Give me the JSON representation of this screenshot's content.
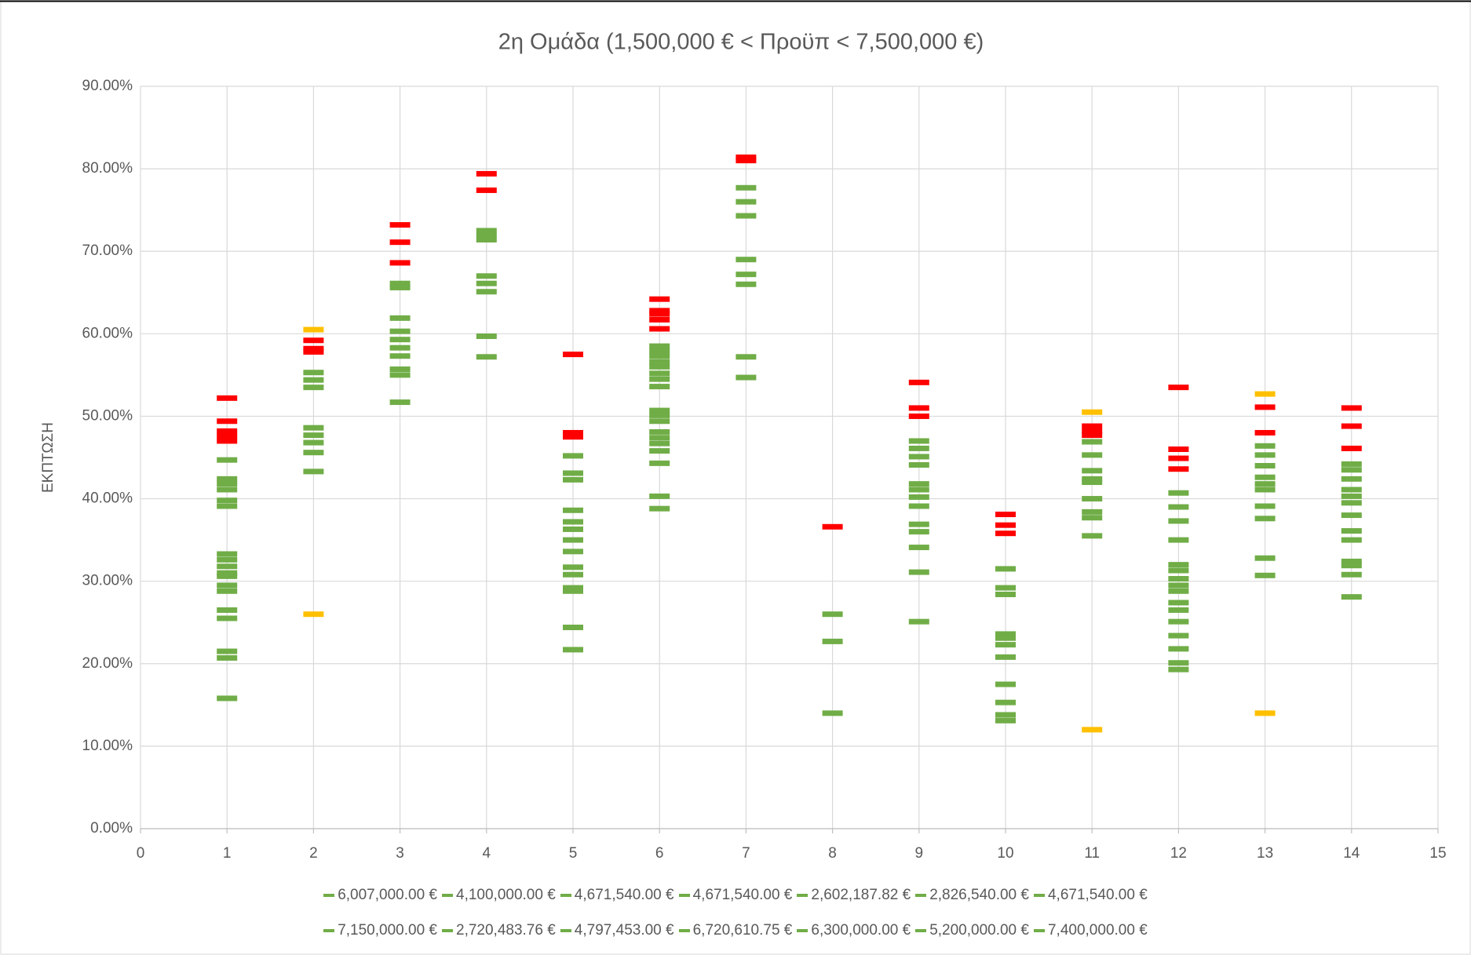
{
  "chart_data": {
    "type": "scatter",
    "title": "2η Ομάδα (1,500,000 € < Προϋπ < 7,500,000 €)",
    "y_label": "ΕΚΠΤΩΣΗ",
    "xlim": [
      0,
      15
    ],
    "xticks": [
      0,
      1,
      2,
      3,
      4,
      5,
      6,
      7,
      8,
      9,
      10,
      11,
      12,
      13,
      14,
      15
    ],
    "ylim": [
      0,
      90
    ],
    "yticks": [
      {
        "value": 0,
        "label": "0.00%"
      },
      {
        "value": 10,
        "label": "10.00%"
      },
      {
        "value": 20,
        "label": "20.00%"
      },
      {
        "value": 30,
        "label": "30.00%"
      },
      {
        "value": 40,
        "label": "40.00%"
      },
      {
        "value": 50,
        "label": "50.00%"
      },
      {
        "value": 60,
        "label": "60.00%"
      },
      {
        "value": 70,
        "label": "70.00%"
      },
      {
        "value": 80,
        "label": "80.00%"
      },
      {
        "value": 90,
        "label": "90.00%"
      }
    ],
    "grid": true,
    "legend": "bottom",
    "series": [
      {
        "name": "6,007,000.00 €",
        "color": "#70ad47",
        "x": 1,
        "values": [
          52.2,
          49.4,
          48.2,
          47.6,
          47.0,
          44.7,
          42.4,
          41.8,
          41.1,
          39.8,
          39.1,
          33.3,
          32.6,
          31.8,
          31.0,
          30.6,
          29.5,
          28.8,
          26.5,
          25.5,
          21.5,
          20.7,
          15.8
        ],
        "point_colors": [
          "#ff0000",
          "#ff0000",
          "#ff0000",
          "#ff0000",
          "#ff0000",
          "#70ad47",
          "#70ad47",
          "#70ad47",
          "#70ad47",
          "#70ad47",
          "#70ad47",
          "#70ad47",
          "#70ad47",
          "#70ad47",
          "#70ad47",
          "#70ad47",
          "#70ad47",
          "#70ad47",
          "#70ad47",
          "#70ad47",
          "#70ad47",
          "#70ad47",
          "#70ad47"
        ]
      },
      {
        "name": "4,100,000.00 €",
        "color": "#70ad47",
        "x": 2,
        "values": [
          60.5,
          59.2,
          58.2,
          57.8,
          55.3,
          54.4,
          53.5,
          48.6,
          47.7,
          46.8,
          45.6,
          43.3,
          26.0
        ],
        "point_colors": [
          "#ffc000",
          "#ff0000",
          "#ff0000",
          "#ff0000",
          "#70ad47",
          "#70ad47",
          "#70ad47",
          "#70ad47",
          "#70ad47",
          "#70ad47",
          "#70ad47",
          "#70ad47",
          "#ffc000"
        ]
      },
      {
        "name": "4,671,540.00 €",
        "color": "#70ad47",
        "x": 3,
        "values": [
          73.2,
          71.1,
          68.6,
          66.1,
          65.6,
          61.9,
          60.3,
          59.3,
          58.3,
          57.3,
          55.7,
          55.0,
          51.7
        ],
        "point_colors": [
          "#ff0000",
          "#ff0000",
          "#ff0000",
          "#70ad47",
          "#70ad47",
          "#70ad47",
          "#70ad47",
          "#70ad47",
          "#70ad47",
          "#70ad47",
          "#70ad47",
          "#70ad47",
          "#70ad47"
        ]
      },
      {
        "name": "4,671,540.00 €",
        "color": "#70ad47",
        "x": 4,
        "values": [
          79.4,
          77.4,
          72.5,
          71.9,
          71.4,
          67.0,
          66.1,
          65.1,
          59.7,
          57.2
        ],
        "point_colors": [
          "#ff0000",
          "#ff0000",
          "#70ad47",
          "#70ad47",
          "#70ad47",
          "#70ad47",
          "#70ad47",
          "#70ad47",
          "#70ad47",
          "#70ad47"
        ]
      },
      {
        "name": "2,602,187.82 €",
        "color": "#70ad47",
        "x": 5,
        "values": [
          57.5,
          48.0,
          47.5,
          45.2,
          43.1,
          42.3,
          38.6,
          37.2,
          36.3,
          35.0,
          33.6,
          31.7,
          30.8,
          29.2,
          28.8,
          24.4,
          21.7
        ],
        "point_colors": [
          "#ff0000",
          "#ff0000",
          "#ff0000",
          "#70ad47",
          "#70ad47",
          "#70ad47",
          "#70ad47",
          "#70ad47",
          "#70ad47",
          "#70ad47",
          "#70ad47",
          "#70ad47",
          "#70ad47",
          "#70ad47",
          "#70ad47",
          "#70ad47",
          "#70ad47"
        ]
      },
      {
        "name": "2,826,540.00 €",
        "color": "#70ad47",
        "x": 6,
        "values": [
          64.2,
          62.8,
          62.4,
          61.7,
          60.6,
          58.5,
          57.9,
          57.3,
          56.6,
          56.0,
          55.2,
          54.5,
          53.6,
          50.7,
          50.1,
          49.4,
          48.1,
          47.4,
          46.7,
          45.8,
          44.3,
          40.3,
          38.8
        ],
        "point_colors": [
          "#ff0000",
          "#ff0000",
          "#ff0000",
          "#ff0000",
          "#ff0000",
          "#70ad47",
          "#70ad47",
          "#70ad47",
          "#70ad47",
          "#70ad47",
          "#70ad47",
          "#70ad47",
          "#70ad47",
          "#70ad47",
          "#70ad47",
          "#70ad47",
          "#70ad47",
          "#70ad47",
          "#70ad47",
          "#70ad47",
          "#70ad47",
          "#70ad47",
          "#70ad47"
        ]
      },
      {
        "name": "4,671,540.00 €",
        "color": "#70ad47",
        "x": 7,
        "values": [
          81.4,
          81.0,
          77.7,
          76.0,
          74.3,
          69.0,
          67.2,
          66.0,
          57.2,
          54.7
        ],
        "point_colors": [
          "#ff0000",
          "#ff0000",
          "#70ad47",
          "#70ad47",
          "#70ad47",
          "#70ad47",
          "#70ad47",
          "#70ad47",
          "#70ad47",
          "#70ad47"
        ]
      },
      {
        "name": "7,150,000.00 €",
        "color": "#70ad47",
        "x": 8,
        "values": [
          36.6,
          26.0,
          22.7,
          14.0
        ],
        "point_colors": [
          "#ff0000",
          "#70ad47",
          "#70ad47",
          "#70ad47"
        ]
      },
      {
        "name": "2,720,483.76 €",
        "color": "#70ad47",
        "x": 9,
        "values": [
          54.1,
          51.0,
          50.0,
          47.0,
          46.1,
          45.1,
          44.1,
          41.8,
          41.1,
          40.2,
          39.1,
          36.9,
          36.0,
          34.1,
          31.1,
          25.1
        ],
        "point_colors": [
          "#ff0000",
          "#ff0000",
          "#ff0000",
          "#70ad47",
          "#70ad47",
          "#70ad47",
          "#70ad47",
          "#70ad47",
          "#70ad47",
          "#70ad47",
          "#70ad47",
          "#70ad47",
          "#70ad47",
          "#70ad47",
          "#70ad47",
          "#70ad47"
        ]
      },
      {
        "name": "4,797,453.00 €",
        "color": "#70ad47",
        "x": 10,
        "values": [
          38.1,
          36.8,
          35.8,
          31.5,
          29.2,
          28.4,
          23.6,
          23.1,
          22.3,
          20.8,
          17.5,
          15.3,
          13.8,
          13.1
        ],
        "point_colors": [
          "#ff0000",
          "#ff0000",
          "#ff0000",
          "#70ad47",
          "#70ad47",
          "#70ad47",
          "#70ad47",
          "#70ad47",
          "#70ad47",
          "#70ad47",
          "#70ad47",
          "#70ad47",
          "#70ad47",
          "#70ad47"
        ]
      },
      {
        "name": "6,720,610.75 €",
        "color": "#70ad47",
        "x": 11,
        "values": [
          50.5,
          48.8,
          48.2,
          47.7,
          46.9,
          45.3,
          43.4,
          42.4,
          42.0,
          40.0,
          38.4,
          37.7,
          35.5,
          12.0
        ],
        "point_colors": [
          "#ffc000",
          "#ff0000",
          "#ff0000",
          "#ff0000",
          "#70ad47",
          "#70ad47",
          "#70ad47",
          "#70ad47",
          "#70ad47",
          "#70ad47",
          "#70ad47",
          "#70ad47",
          "#70ad47",
          "#ffc000"
        ]
      },
      {
        "name": "6,300,000.00 €",
        "color": "#70ad47",
        "x": 12,
        "values": [
          53.5,
          46.0,
          44.9,
          43.6,
          40.7,
          39.0,
          37.3,
          35.0,
          32.0,
          31.3,
          30.3,
          29.5,
          28.8,
          27.4,
          26.5,
          25.1,
          23.4,
          21.8,
          20.1,
          19.3
        ],
        "point_colors": [
          "#ff0000",
          "#ff0000",
          "#ff0000",
          "#ff0000",
          "#70ad47",
          "#70ad47",
          "#70ad47",
          "#70ad47",
          "#70ad47",
          "#70ad47",
          "#70ad47",
          "#70ad47",
          "#70ad47",
          "#70ad47",
          "#70ad47",
          "#70ad47",
          "#70ad47",
          "#70ad47",
          "#70ad47",
          "#70ad47"
        ]
      },
      {
        "name": "5,200,000.00 €",
        "color": "#70ad47",
        "x": 13,
        "values": [
          52.7,
          51.1,
          48.0,
          46.4,
          45.3,
          44.0,
          42.6,
          41.8,
          41.1,
          39.1,
          37.6,
          32.8,
          30.7,
          14.0
        ],
        "point_colors": [
          "#ffc000",
          "#ff0000",
          "#ff0000",
          "#70ad47",
          "#70ad47",
          "#70ad47",
          "#70ad47",
          "#70ad47",
          "#70ad47",
          "#70ad47",
          "#70ad47",
          "#70ad47",
          "#70ad47",
          "#ffc000"
        ]
      },
      {
        "name": "7,400,000.00 €",
        "color": "#70ad47",
        "x": 14,
        "values": [
          51.0,
          48.8,
          46.1,
          44.2,
          43.5,
          42.4,
          41.1,
          40.3,
          39.5,
          38.0,
          36.1,
          35.0,
          32.4,
          31.9,
          30.8,
          28.1
        ],
        "point_colors": [
          "#ff0000",
          "#ff0000",
          "#ff0000",
          "#70ad47",
          "#70ad47",
          "#70ad47",
          "#70ad47",
          "#70ad47",
          "#70ad47",
          "#70ad47",
          "#70ad47",
          "#70ad47",
          "#70ad47",
          "#70ad47",
          "#70ad47",
          "#70ad47"
        ]
      }
    ]
  }
}
